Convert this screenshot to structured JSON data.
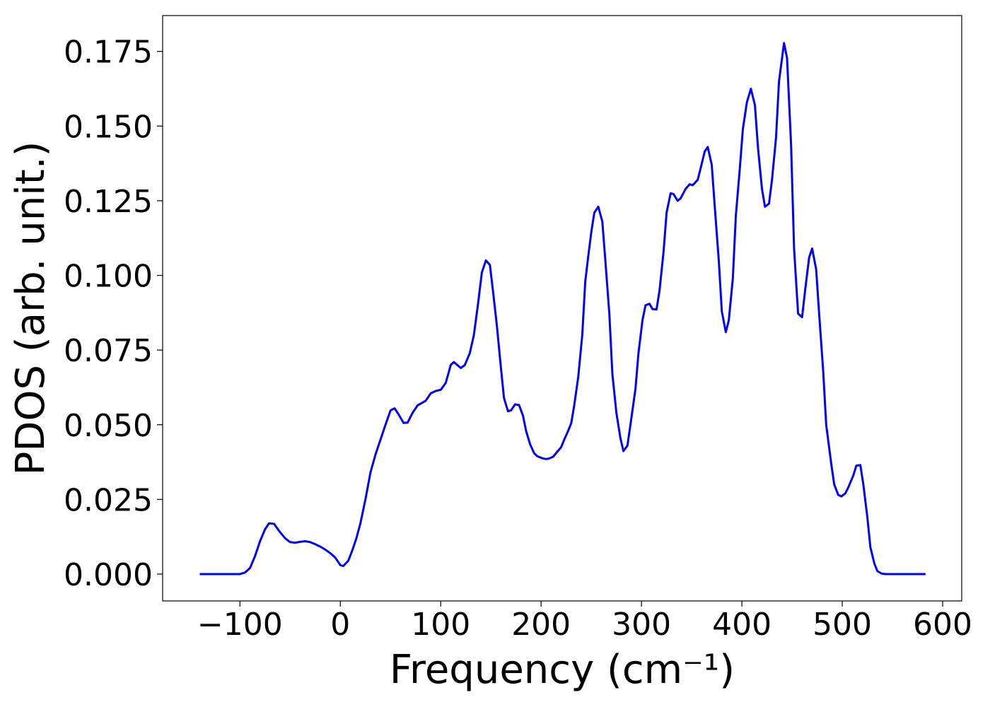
{
  "chart_data": {
    "type": "line",
    "xlabel": "Frequency (cm⁻¹)",
    "ylabel": "PDOS (arb. unit.)",
    "xlim": [
      -177,
      619
    ],
    "ylim": [
      -0.009,
      0.187
    ],
    "xticks": [
      {
        "value": -100,
        "label": "−100"
      },
      0,
      100,
      200,
      300,
      400,
      500,
      600
    ],
    "yticks": [
      {
        "value": 0,
        "label": "0.000"
      },
      0.025,
      {
        "value": 0.05,
        "label": "0.050"
      },
      0.075,
      {
        "value": 0.1,
        "label": "0.100"
      },
      0.125,
      {
        "value": 0.15,
        "label": "0.150"
      },
      0.175
    ],
    "grid": false,
    "series": [
      {
        "name": "PDOS",
        "color": "#0000ff",
        "x": [
          -140,
          -100,
          -95,
          -90,
          -85,
          -80,
          -75,
          -71,
          -66,
          -60,
          -55,
          -50,
          -45,
          -40,
          -35,
          -30,
          -25,
          -20,
          -15,
          -10,
          -5,
          0,
          3,
          8,
          12,
          16,
          20,
          25,
          30,
          35,
          40,
          45,
          50,
          54,
          58,
          63,
          67,
          72,
          77,
          85,
          90,
          95,
          100,
          105,
          110,
          113,
          120,
          124,
          129,
          133,
          137,
          141,
          145,
          149,
          152,
          156,
          160,
          163,
          167,
          170,
          174,
          178,
          182,
          185,
          189,
          193,
          196,
          201,
          205,
          208,
          212,
          215,
          220,
          223,
          227,
          230,
          233,
          237,
          241,
          244,
          247,
          250,
          253,
          257,
          261,
          264,
          268,
          271,
          275,
          279,
          282,
          286,
          289,
          294,
          297,
          301,
          304,
          308,
          311,
          315,
          318,
          322,
          325,
          329,
          332,
          336,
          339,
          344,
          348,
          351,
          356,
          359,
          363,
          366,
          370,
          373,
          377,
          380,
          384,
          387,
          391,
          394,
          398,
          401,
          405,
          409,
          413,
          416,
          420,
          423,
          427,
          430,
          434,
          437,
          442,
          445,
          449,
          452,
          456,
          460,
          463,
          467,
          470,
          474,
          477,
          481,
          484,
          489,
          492,
          496,
          499,
          503,
          506,
          511,
          514,
          518,
          521,
          525,
          528,
          532,
          535,
          539,
          543,
          583
        ],
        "values": [
          0,
          0,
          0.0005,
          0.002,
          0.006,
          0.011,
          0.015,
          0.017,
          0.0168,
          0.014,
          0.012,
          0.0107,
          0.0105,
          0.0108,
          0.011,
          0.0107,
          0.01,
          0.0092,
          0.0082,
          0.007,
          0.0055,
          0.003,
          0.0027,
          0.0045,
          0.008,
          0.012,
          0.017,
          0.025,
          0.034,
          0.04,
          0.045,
          0.05,
          0.0548,
          0.0555,
          0.0535,
          0.0506,
          0.0507,
          0.054,
          0.0565,
          0.058,
          0.0605,
          0.0613,
          0.0617,
          0.064,
          0.07,
          0.071,
          0.069,
          0.07,
          0.074,
          0.08,
          0.09,
          0.101,
          0.105,
          0.1035,
          0.095,
          0.083,
          0.069,
          0.059,
          0.0545,
          0.0548,
          0.0568,
          0.0566,
          0.053,
          0.048,
          0.0435,
          0.0405,
          0.0395,
          0.0388,
          0.0385,
          0.0387,
          0.0393,
          0.0405,
          0.0425,
          0.045,
          0.048,
          0.0505,
          0.0565,
          0.066,
          0.08,
          0.098,
          0.1065,
          0.1145,
          0.121,
          0.123,
          0.118,
          0.105,
          0.087,
          0.067,
          0.054,
          0.0455,
          0.0412,
          0.043,
          0.05,
          0.062,
          0.074,
          0.085,
          0.09,
          0.0905,
          0.0887,
          0.0886,
          0.095,
          0.108,
          0.121,
          0.1275,
          0.1272,
          0.125,
          0.1258,
          0.129,
          0.1305,
          0.1302,
          0.132,
          0.136,
          0.1415,
          0.143,
          0.137,
          0.123,
          0.105,
          0.088,
          0.081,
          0.085,
          0.099,
          0.12,
          0.136,
          0.149,
          0.158,
          0.1625,
          0.157,
          0.143,
          0.129,
          0.123,
          0.124,
          0.132,
          0.146,
          0.165,
          0.1778,
          0.1728,
          0.144,
          0.109,
          0.0872,
          0.086,
          0.095,
          0.106,
          0.109,
          0.102,
          0.087,
          0.068,
          0.05,
          0.037,
          0.03,
          0.0265,
          0.026,
          0.027,
          0.029,
          0.033,
          0.0363,
          0.0365,
          0.03,
          0.019,
          0.009,
          0.0035,
          0.001,
          0.0002,
          0,
          0
        ]
      }
    ]
  }
}
